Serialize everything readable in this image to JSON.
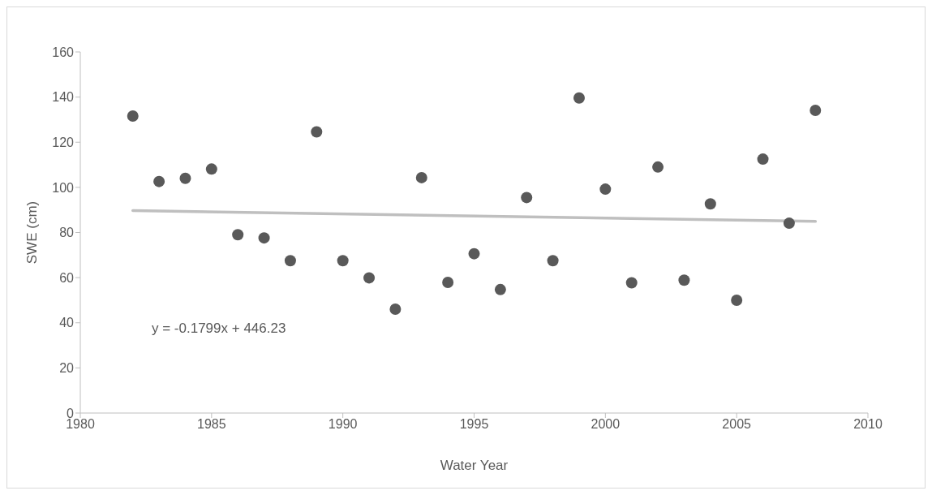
{
  "chart_data": {
    "type": "scatter",
    "xlabel": "Water Year",
    "ylabel": "SWE (cm)",
    "xlim": [
      1980,
      2010
    ],
    "xticks": [
      1980,
      1985,
      1990,
      1995,
      2000,
      2005,
      2010
    ],
    "ylim": [
      0,
      160
    ],
    "yticks": [
      0,
      20,
      40,
      60,
      80,
      100,
      120,
      140,
      160
    ],
    "annotations": [
      "y = -0.1799x + 446.23"
    ],
    "series": [
      {
        "color": "#595959",
        "marker": "circle",
        "x": [
          1982,
          1983,
          1984,
          1985,
          1986,
          1987,
          1988,
          1989,
          1990,
          1991,
          1992,
          1993,
          1994,
          1995,
          1996,
          1997,
          1998,
          1999,
          2000,
          2001,
          2002,
          2003,
          2004,
          2005,
          2006,
          2007,
          2008
        ],
        "values": [
          131.6,
          102.6,
          104.0,
          108.1,
          79.0,
          77.6,
          67.5,
          124.6,
          67.5,
          59.9,
          46.0,
          104.3,
          57.9,
          70.6,
          54.7,
          95.5,
          67.5,
          139.6,
          99.2,
          57.7,
          109.0,
          58.9,
          92.7,
          50.0,
          112.5,
          84.1,
          134.1
        ]
      },
      {
        "type": "line",
        "color": "#bfbfbf",
        "x": [
          1982,
          2008
        ],
        "values": [
          89.7,
          84.9
        ]
      }
    ]
  }
}
